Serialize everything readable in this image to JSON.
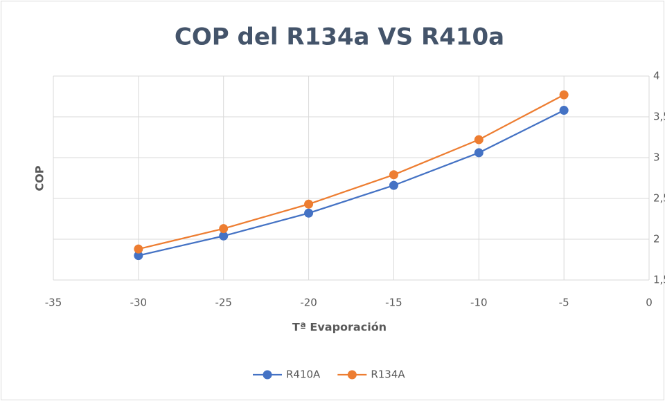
{
  "chart_data": {
    "type": "line",
    "title": "COP del R134a VS R410a",
    "xlabel": "Tª Evaporación",
    "ylabel": "COP",
    "x": [
      -30,
      -25,
      -20,
      -15,
      -10,
      -5
    ],
    "series": [
      {
        "name": "R410A",
        "color": "#4472c4",
        "values": [
          1.8,
          2.04,
          2.32,
          2.66,
          3.06,
          3.58
        ]
      },
      {
        "name": "R134A",
        "color": "#ed7d31",
        "values": [
          1.88,
          2.13,
          2.43,
          2.79,
          3.22,
          3.77
        ]
      }
    ],
    "xlim": [
      -35,
      0
    ],
    "xticks": [
      -35,
      -30,
      -25,
      -20,
      -15,
      -10,
      -5,
      0
    ],
    "ylim": [
      1.5,
      4
    ],
    "yticks": [
      {
        "value": 1.5,
        "label": "1,5"
      },
      2,
      {
        "value": 2.5,
        "label": "2,5"
      },
      3,
      {
        "value": 3.5,
        "label": "3,5"
      },
      4
    ],
    "grid": true,
    "legend": "bottom"
  }
}
